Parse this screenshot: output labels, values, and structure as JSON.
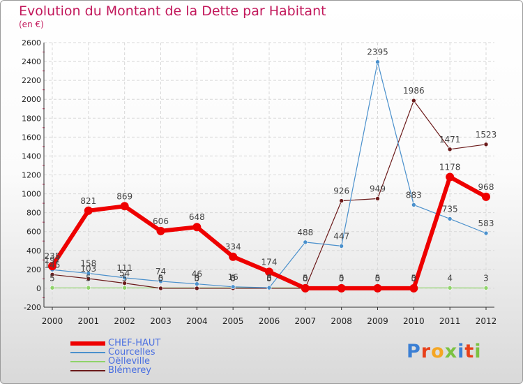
{
  "chart_data": {
    "type": "line",
    "title": "Evolution du Montant de la Dette par Habitant",
    "subtitle": "(en €)",
    "x": [
      "2000",
      "2001",
      "2002",
      "2003",
      "2004",
      "2005",
      "2006",
      "2007",
      "2008",
      "2009",
      "2010",
      "2011",
      "2012"
    ],
    "ylim": [
      -200,
      2600
    ],
    "yticks": [
      "-200",
      "0",
      "200",
      "400",
      "600",
      "800",
      "1000",
      "1200",
      "1400",
      "1600",
      "1800",
      "2000",
      "2200",
      "2400",
      "2600"
    ],
    "grid": true,
    "legend_position": "bottom-left",
    "series": [
      {
        "name": "CHEF-HAUT",
        "color": "#ee0000",
        "values": [
          235,
          821,
          869,
          606,
          648,
          334,
          174,
          0,
          0,
          0,
          0,
          1178,
          968
        ],
        "labels": [
          "235",
          "821",
          "869",
          "606",
          "648",
          "334",
          "174",
          "0",
          "0",
          "0",
          "0",
          "1178",
          "968"
        ]
      },
      {
        "name": "Courcelles",
        "color": "#4a90cc",
        "values": [
          197,
          158,
          111,
          74,
          46,
          16,
          6,
          488,
          447,
          2395,
          883,
          735,
          583
        ],
        "labels": [
          "197",
          "158",
          "111",
          "74",
          "46",
          "16",
          "6",
          "488",
          "447",
          "2395",
          "883",
          "735",
          "583"
        ]
      },
      {
        "name": "Oëlleville",
        "color": "#8fd36a",
        "values": [
          5,
          5,
          5,
          5,
          5,
          5,
          5,
          5,
          5,
          5,
          5,
          4,
          3
        ],
        "labels": [
          "5",
          "5",
          "5",
          "5",
          "5",
          "5",
          "5",
          "5",
          "5",
          "5",
          "5",
          "4",
          "3"
        ]
      },
      {
        "name": "Blémerey",
        "color": "#6b1a1a",
        "values": [
          145,
          103,
          54,
          0,
          0,
          0,
          0,
          0,
          926,
          949,
          1986,
          1471,
          1523
        ],
        "labels": [
          "145",
          "103",
          "54",
          "0",
          "0",
          "0",
          "0",
          "0",
          "926",
          "949",
          "1986",
          "1471",
          "1523"
        ]
      }
    ]
  },
  "logo": {
    "text": "Proxiti",
    "colors": [
      "#3b7fd4",
      "#e8401a",
      "#f5a623",
      "#7cc242",
      "#3b7fd4",
      "#e8401a",
      "#7cc242"
    ]
  }
}
